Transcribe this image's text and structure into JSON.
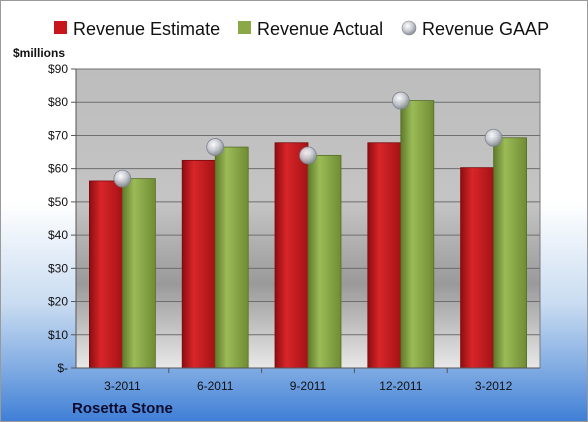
{
  "chart_data": {
    "type": "bar",
    "categories": [
      "3-2011",
      "6-2011",
      "9-2011",
      "12-2011",
      "3-2012"
    ],
    "series": [
      {
        "name": "Revenue Estimate",
        "kind": "bar",
        "color": "#c8171c",
        "values": [
          56.3,
          62.5,
          67.8,
          67.8,
          60.3
        ]
      },
      {
        "name": "Revenue Actual",
        "kind": "bar",
        "color": "#8aa845",
        "values": [
          57.0,
          66.5,
          64.0,
          80.5,
          69.3
        ]
      },
      {
        "name": "Revenue GAAP",
        "kind": "marker",
        "color": "#b8bcc8",
        "values": [
          57.0,
          66.5,
          64.0,
          80.5,
          69.3
        ]
      }
    ],
    "ylabel": "$millions",
    "ylim": [
      0,
      90
    ],
    "yticks": [
      0,
      10,
      20,
      30,
      40,
      50,
      60,
      70,
      80,
      90
    ],
    "ytick_labels": [
      "$-",
      "$10",
      "$20",
      "$30",
      "$40",
      "$50",
      "$60",
      "$70",
      "$80",
      "$90"
    ],
    "grid": true,
    "legend_position": "top",
    "company": "Rosetta Stone"
  }
}
